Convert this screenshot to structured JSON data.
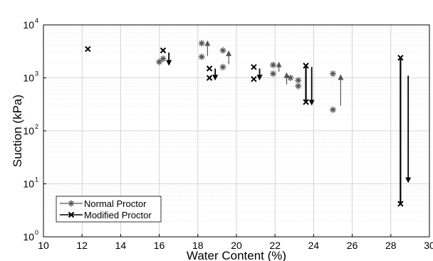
{
  "chart_data": {
    "type": "scatter",
    "xlabel": "Water Content (%)",
    "ylabel": "Suction (kPa)",
    "xlim": [
      10,
      30
    ],
    "ylim": [
      1,
      10000
    ],
    "yscale": "log",
    "grid": true,
    "x_ticks": [
      "10",
      "12",
      "14",
      "16",
      "18",
      "20",
      "22",
      "24",
      "26",
      "28",
      "30"
    ],
    "y_ticks": [
      {
        "base": "10",
        "exp": "0"
      },
      {
        "base": "10",
        "exp": "1"
      },
      {
        "base": "10",
        "exp": "2"
      },
      {
        "base": "10",
        "exp": "3"
      },
      {
        "base": "10",
        "exp": "4"
      }
    ],
    "legend_position": "bottom-left",
    "series": [
      {
        "name": "Normal Proctor",
        "marker": "asterisk",
        "color": "#555555",
        "points": [
          {
            "x": 16.0,
            "y": 2000
          },
          {
            "x": 16.2,
            "y": 2300
          },
          {
            "x": 18.2,
            "y": 4500
          },
          {
            "x": 18.2,
            "y": 2500
          },
          {
            "x": 19.3,
            "y": 3300
          },
          {
            "x": 19.3,
            "y": 1600
          },
          {
            "x": 21.9,
            "y": 1750
          },
          {
            "x": 21.9,
            "y": 1200
          },
          {
            "x": 22.8,
            "y": 1000
          },
          {
            "x": 23.2,
            "y": 900
          },
          {
            "x": 23.2,
            "y": 700
          },
          {
            "x": 25.0,
            "y": 1200
          },
          {
            "x": 25.0,
            "y": 250
          }
        ],
        "arrows": [
          {
            "x": 18.5,
            "from": 2600,
            "to": 4800
          },
          {
            "x": 19.6,
            "from": 1800,
            "to": 3100
          },
          {
            "x": 22.2,
            "from": 1300,
            "to": 1900
          },
          {
            "x": 22.6,
            "from": 750,
            "to": 1200
          },
          {
            "x": 25.4,
            "from": 300,
            "to": 1100
          }
        ]
      },
      {
        "name": "Modified Proctor",
        "marker": "cross",
        "color": "#000000",
        "points": [
          {
            "x": 12.3,
            "y": 3500
          },
          {
            "x": 16.2,
            "y": 3300
          },
          {
            "x": 18.6,
            "y": 1500
          },
          {
            "x": 18.6,
            "y": 1000
          },
          {
            "x": 20.9,
            "y": 1600
          },
          {
            "x": 20.9,
            "y": 950
          },
          {
            "x": 23.6,
            "y": 1700
          },
          {
            "x": 23.6,
            "y": 350
          },
          {
            "x": 28.5,
            "y": 2400
          },
          {
            "x": 28.5,
            "y": 4.2
          }
        ],
        "arrows": [
          {
            "x": 16.5,
            "from": 3000,
            "to": 1800
          },
          {
            "x": 18.9,
            "from": 1500,
            "to": 950
          },
          {
            "x": 21.2,
            "from": 1500,
            "to": 950
          },
          {
            "x": 23.9,
            "from": 1600,
            "to": 320
          },
          {
            "x": 28.9,
            "from": 1100,
            "to": 11
          }
        ],
        "lines": [
          {
            "x": 23.6,
            "from": 1700,
            "to": 350
          },
          {
            "x": 28.5,
            "from": 2400,
            "to": 4.2
          }
        ]
      }
    ]
  }
}
